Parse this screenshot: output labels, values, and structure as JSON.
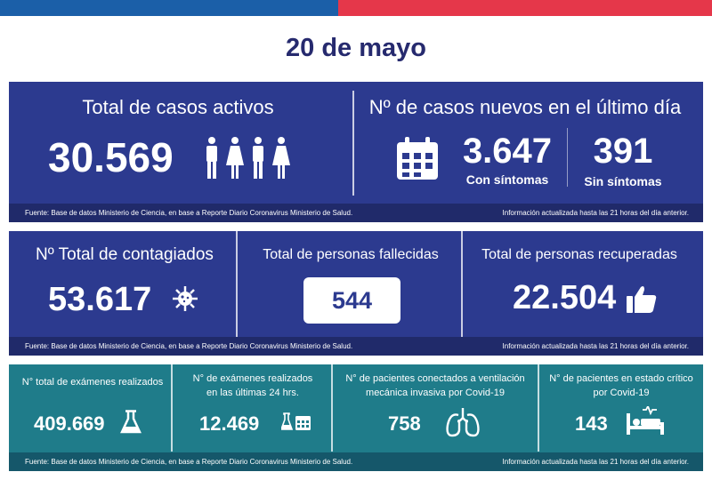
{
  "date": "20 de mayo",
  "row1": {
    "activos_title": "Total de casos activos",
    "activos_value": "30.569",
    "nuevos_title": "Nº de casos nuevos en el último día",
    "con_value": "3.647",
    "con_label": "Con síntomas",
    "sin_value": "391",
    "sin_label": "Sin síntomas"
  },
  "row2": {
    "contagiados_title": "Nº Total de contagiados",
    "contagiados_value": "53.617",
    "fallecidas_title": "Total de personas fallecidas",
    "fallecidas_value": "544",
    "recuperadas_title": "Total de personas recuperadas",
    "recuperadas_value": "22.504"
  },
  "row3": {
    "examenes_title": "N° total de exámenes realizados",
    "examenes_value": "409.669",
    "examenes24_title_1": "N° de exámenes realizados",
    "examenes24_title_2": "en las últimas 24 hrs.",
    "examenes24_value": "12.469",
    "ventilacion_title_1": "N° de pacientes conectados a ventilación",
    "ventilacion_title_2": "mecánica invasiva por Covid-19",
    "ventilacion_value": "758",
    "critico_title_1": "N° de pacientes en estado crítico",
    "critico_title_2": "por Covid-19",
    "critico_value": "143"
  },
  "footer": {
    "source": "Fuente: Base de datos Ministerio de Ciencia, en base a Reporte Diario Coronavirus Ministerio de Salud.",
    "updated": "Información actualizada hasta las 21 horas  del día anterior."
  },
  "colors": {
    "flag_blue": "#1b5fa8",
    "flag_red": "#e5374a",
    "navy": "#2c3a8f",
    "teal": "#1f7c8a",
    "title": "#262a6e"
  },
  "icons": [
    "people-icon",
    "calendar-icon",
    "virus-icon",
    "thumbs-up-icon",
    "flask-icon",
    "flask-calendar-icon",
    "lungs-icon",
    "hospital-bed-icon"
  ]
}
